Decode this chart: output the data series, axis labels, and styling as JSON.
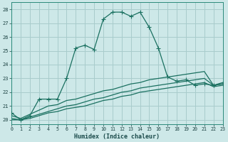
{
  "xlabel": "Humidex (Indice chaleur)",
  "xlim": [
    0,
    23
  ],
  "ylim": [
    19.7,
    28.5
  ],
  "xticks": [
    0,
    1,
    2,
    3,
    4,
    5,
    6,
    7,
    8,
    9,
    10,
    11,
    12,
    13,
    14,
    15,
    16,
    17,
    18,
    19,
    20,
    21,
    22,
    23
  ],
  "yticks": [
    20,
    21,
    22,
    23,
    24,
    25,
    26,
    27,
    28
  ],
  "background_color": "#cde8e8",
  "grid_color": "#a8cccc",
  "line_color": "#1a7060",
  "line1_x": [
    0,
    1,
    2,
    3,
    4,
    5,
    6,
    7,
    8,
    9,
    10,
    11,
    12,
    13,
    14,
    15,
    16,
    17,
    18,
    19,
    20,
    21,
    22,
    23
  ],
  "line1_y": [
    20.5,
    20.0,
    20.3,
    21.5,
    21.5,
    21.5,
    23.0,
    25.2,
    25.4,
    25.1,
    27.3,
    27.8,
    27.8,
    27.5,
    27.8,
    26.7,
    25.2,
    23.1,
    22.8,
    22.9,
    22.5,
    22.6,
    22.5,
    22.6
  ],
  "line2_x": [
    0,
    1,
    2,
    3,
    4,
    5,
    6,
    7,
    8,
    9,
    10,
    11,
    12,
    13,
    14,
    15,
    16,
    17,
    18,
    19,
    20,
    21,
    22,
    23
  ],
  "line2_y": [
    20.0,
    20.0,
    20.1,
    20.3,
    20.5,
    20.6,
    20.8,
    20.9,
    21.0,
    21.2,
    21.4,
    21.5,
    21.7,
    21.8,
    22.0,
    22.1,
    22.2,
    22.3,
    22.4,
    22.5,
    22.6,
    22.7,
    22.4,
    22.5
  ],
  "line3_x": [
    0,
    1,
    2,
    3,
    4,
    5,
    6,
    7,
    8,
    9,
    10,
    11,
    12,
    13,
    14,
    15,
    16,
    17,
    18,
    19,
    20,
    21,
    22,
    23
  ],
  "line3_y": [
    20.1,
    20.0,
    20.2,
    20.4,
    20.6,
    20.8,
    21.0,
    21.1,
    21.3,
    21.5,
    21.6,
    21.8,
    22.0,
    22.1,
    22.3,
    22.4,
    22.5,
    22.6,
    22.7,
    22.8,
    22.9,
    23.0,
    22.5,
    22.6
  ],
  "line4_x": [
    0,
    1,
    2,
    3,
    4,
    5,
    6,
    7,
    8,
    9,
    10,
    11,
    12,
    13,
    14,
    15,
    16,
    17,
    18,
    19,
    20,
    21,
    22,
    23
  ],
  "line4_y": [
    20.3,
    20.1,
    20.4,
    20.7,
    21.0,
    21.1,
    21.4,
    21.5,
    21.7,
    21.9,
    22.1,
    22.2,
    22.4,
    22.6,
    22.7,
    22.9,
    23.0,
    23.1,
    23.2,
    23.3,
    23.4,
    23.5,
    22.5,
    22.7
  ]
}
